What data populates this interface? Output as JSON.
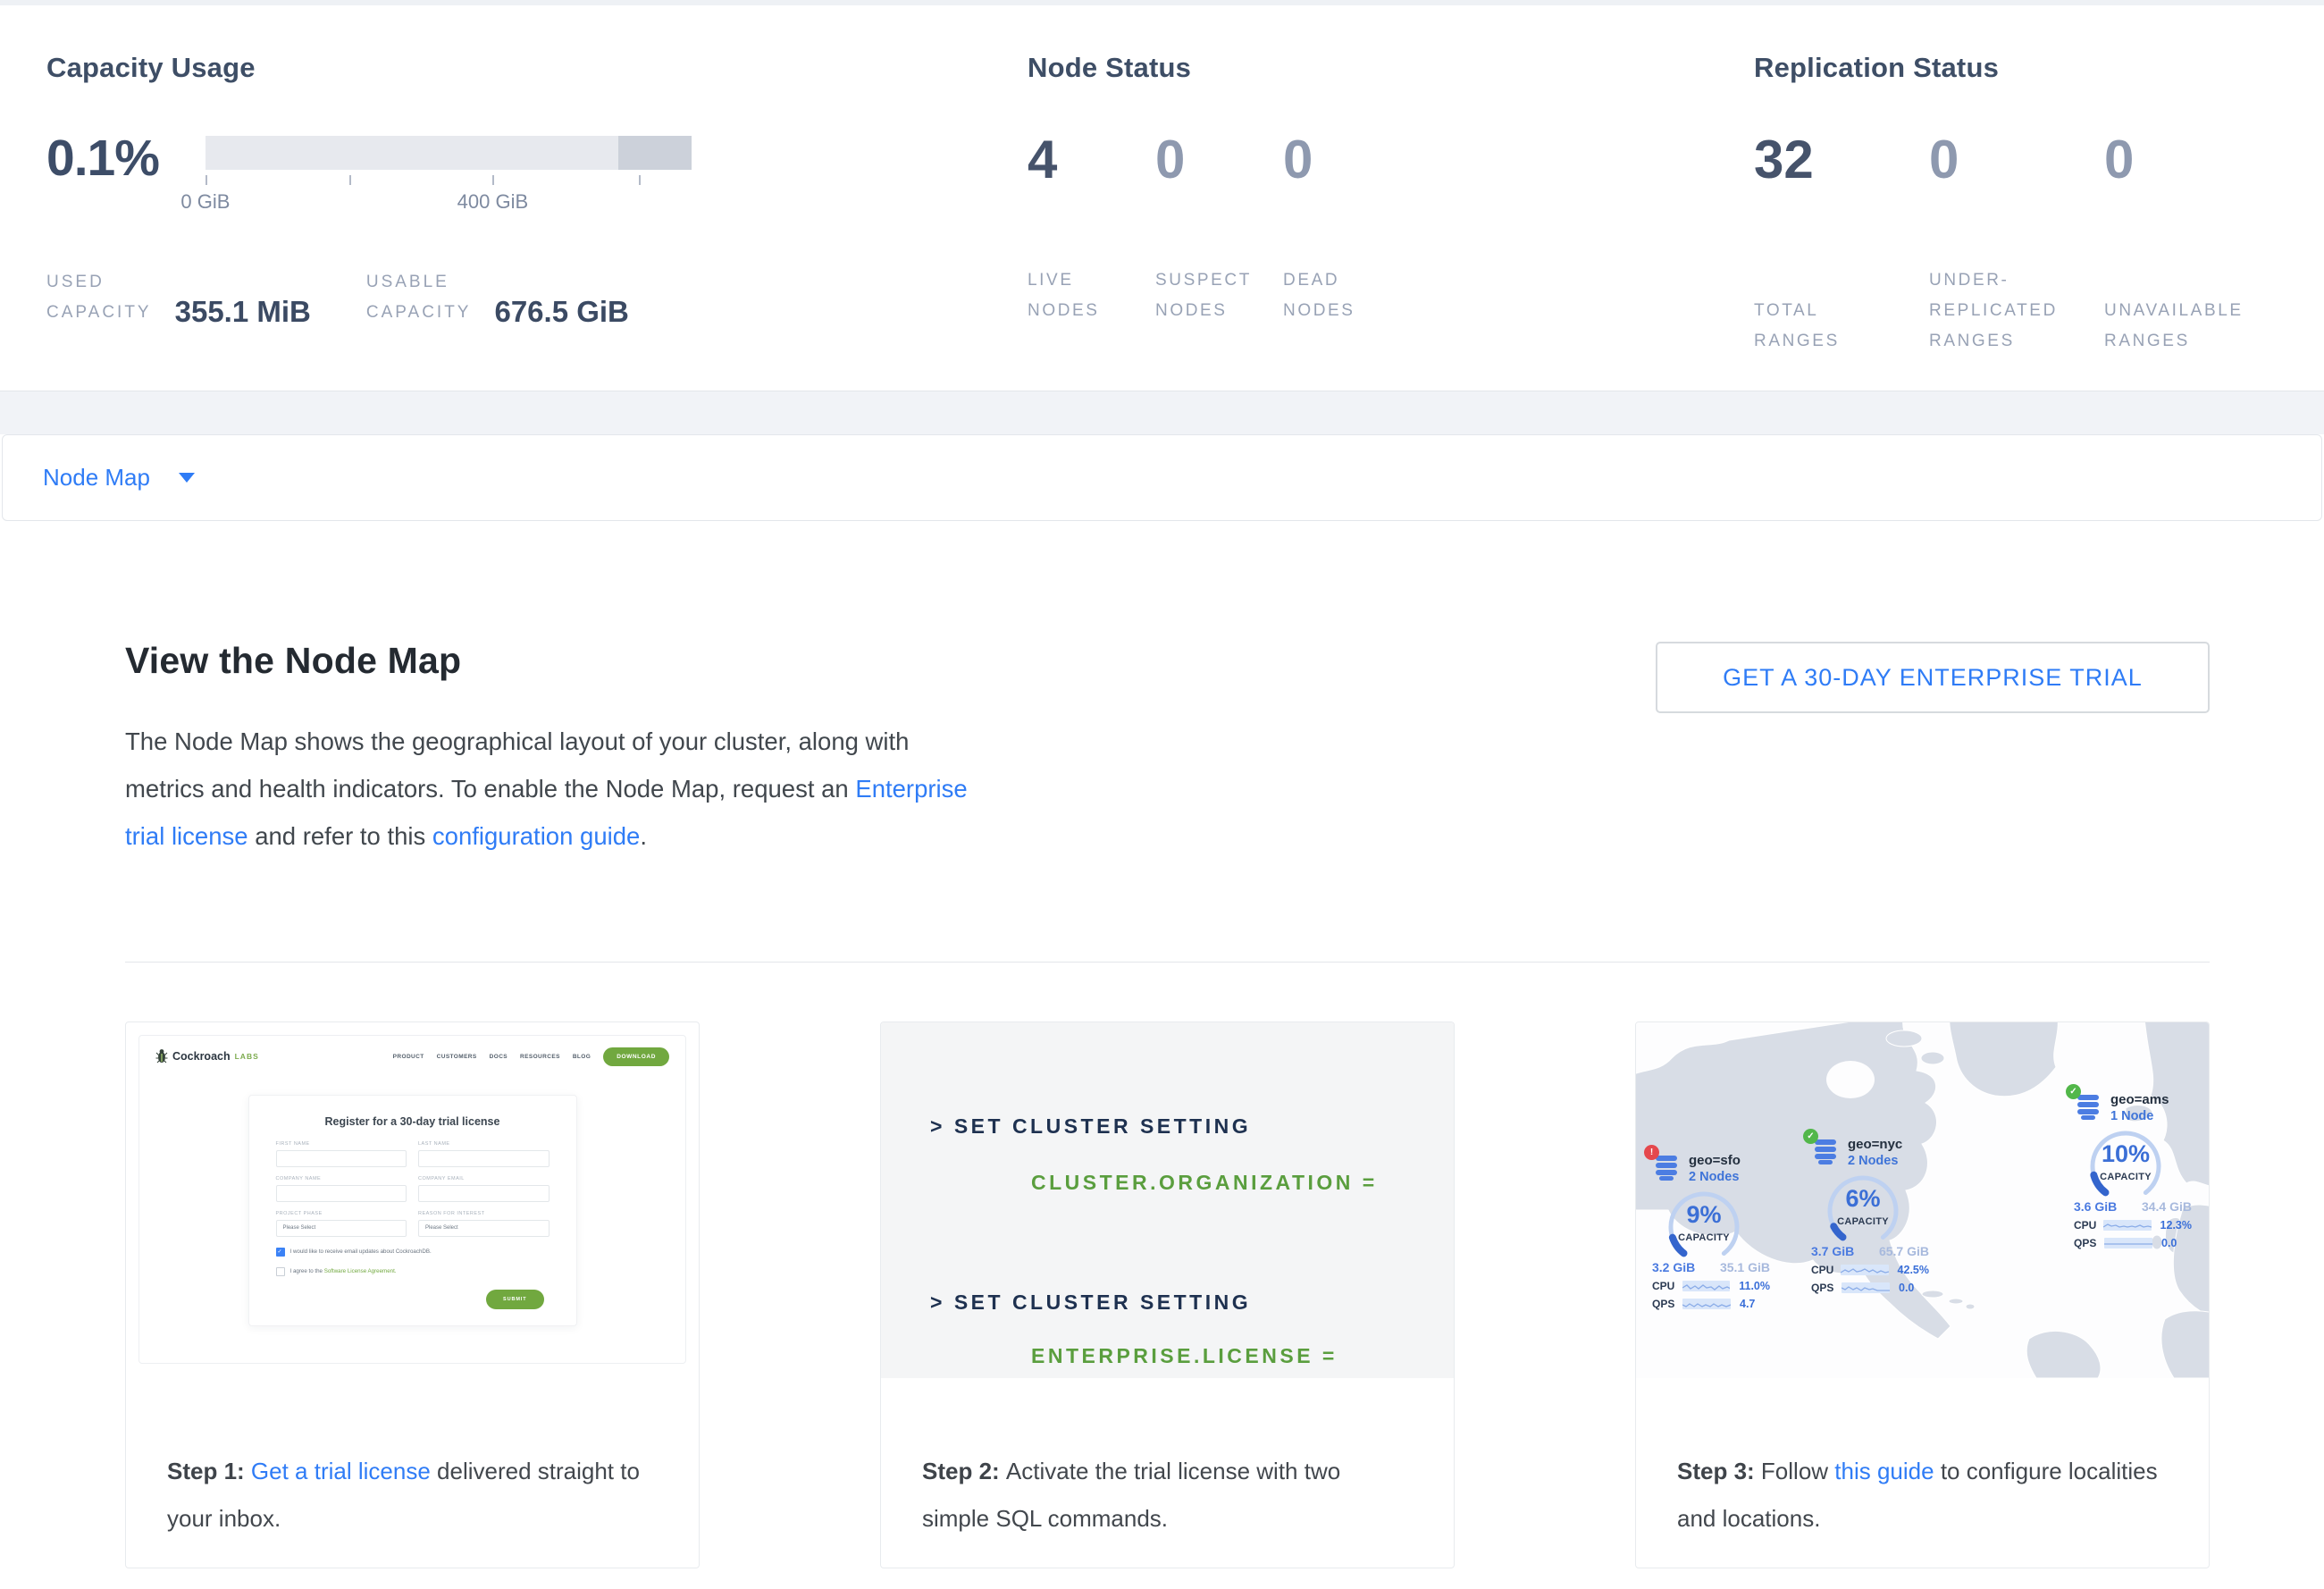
{
  "colors": {
    "accent_blue": "#2f7cf6",
    "brand_green": "#71a83f",
    "code_green": "#5a9e3e",
    "code_navy": "#1e3150",
    "status_ok_green": "#52b74a",
    "status_err_red": "#e5484d"
  },
  "stats": {
    "capacity": {
      "title": "Capacity Usage",
      "percent": "0.1%",
      "tick_label_0": "0 GiB",
      "tick_label_400": "400 GiB",
      "used_label_line1": "USED",
      "used_label_line2": "CAPACITY",
      "used_value": "355.1 MiB",
      "usable_label_line1": "USABLE",
      "usable_label_line2": "CAPACITY",
      "usable_value": "676.5 GiB"
    },
    "node_status": {
      "title": "Node Status",
      "items": [
        {
          "value": "4",
          "label_lines": [
            "LIVE",
            "NODES"
          ]
        },
        {
          "value": "0",
          "label_lines": [
            "SUSPECT",
            "NODES"
          ]
        },
        {
          "value": "0",
          "label_lines": [
            "DEAD",
            "NODES"
          ]
        }
      ]
    },
    "replication_status": {
      "title": "Replication Status",
      "items": [
        {
          "value": "32",
          "label_lines": [
            "TOTAL",
            "RANGES"
          ]
        },
        {
          "value": "0",
          "label_lines": [
            "UNDER-",
            "REPLICATED",
            "RANGES"
          ]
        },
        {
          "value": "0",
          "label_lines": [
            "UNAVAILABLE",
            "RANGES"
          ]
        }
      ]
    }
  },
  "node_map_bar": {
    "label": "Node Map"
  },
  "intro": {
    "heading": "View the Node Map",
    "paragraph_segments": [
      {
        "t": "The Node Map shows the geographical layout of your cluster, along with metrics and health indicators. To enable the Node Map, request an "
      },
      {
        "t": "Enterprise trial license",
        "cls": "link"
      },
      {
        "t": " and refer to this "
      },
      {
        "t": "configuration guide",
        "cls": "link"
      },
      {
        "t": "."
      }
    ],
    "trial_button": "GET A 30-DAY ENTERPRISE TRIAL"
  },
  "minisite": {
    "brand_name": "Cockroach",
    "brand_suffix": "LABS",
    "nav_items": [
      "PRODUCT",
      "CUSTOMERS",
      "DOCS",
      "RESOURCES",
      "BLOG"
    ],
    "download_button": "DOWNLOAD",
    "form_title": "Register for a 30-day trial license",
    "field_labels": [
      "FIRST NAME",
      "LAST NAME",
      "COMPANY NAME",
      "COMPANY EMAIL",
      "PROJECT PHASE",
      "REASON FOR INTEREST"
    ],
    "select_placeholder": "Please Select",
    "checkbox1_label": "I would like to receive email updates about CockroachDB.",
    "checkbox2_prefix": "I agree to the ",
    "checkbox2_link": "Software License Agreement.",
    "submit_button": "SUBMIT"
  },
  "code_card": {
    "lines": [
      {
        "text": "> SET CLUSTER SETTING"
      },
      {
        "text": "CLUSTER.ORGANIZATION ="
      },
      {
        "text": "> SET CLUSTER SETTING"
      },
      {
        "text": "ENTERPRISE.LICENSE ="
      }
    ]
  },
  "map_card": {
    "nodes": [
      {
        "name": "geo=sfo",
        "node_count": "2 Nodes",
        "status": "error",
        "badge_glyph": "!",
        "capacity_pct": "9%",
        "capacity_label": "CAPACITY",
        "used": "3.2 GiB",
        "capacity_total": "35.1 GiB",
        "cpu_label": "CPU",
        "cpu_value": "11.0%",
        "qps_label": "QPS",
        "qps_value": "4.7"
      },
      {
        "name": "geo=nyc",
        "node_count": "2 Nodes",
        "status": "ok",
        "badge_glyph": "✓",
        "capacity_pct": "6%",
        "capacity_label": "CAPACITY",
        "used": "3.7 GiB",
        "capacity_total": "65.7 GiB",
        "cpu_label": "CPU",
        "cpu_value": "42.5%",
        "qps_label": "QPS",
        "qps_value": "0.0"
      },
      {
        "name": "geo=ams",
        "node_count": "1 Node",
        "status": "ok",
        "badge_glyph": "✓",
        "capacity_pct": "10%",
        "capacity_label": "CAPACITY",
        "used": "3.6 GiB",
        "capacity_total": "34.4 GiB",
        "cpu_label": "CPU",
        "cpu_value": "12.3%",
        "qps_label": "QPS",
        "qps_value": "0.0"
      }
    ]
  },
  "steps": [
    {
      "segments": [
        {
          "t": "Step 1: ",
          "cls": "bold"
        },
        {
          "t": "Get a trial license",
          "cls": "link"
        },
        {
          "t": " delivered straight to your inbox."
        }
      ]
    },
    {
      "segments": [
        {
          "t": "Step 2: ",
          "cls": "bold"
        },
        {
          "t": "Activate the trial license with two simple SQL commands."
        }
      ]
    },
    {
      "segments": [
        {
          "t": "Step 3: ",
          "cls": "bold"
        },
        {
          "t": "Follow "
        },
        {
          "t": "this guide",
          "cls": "link"
        },
        {
          "t": " to configure localities and locations."
        }
      ]
    }
  ]
}
